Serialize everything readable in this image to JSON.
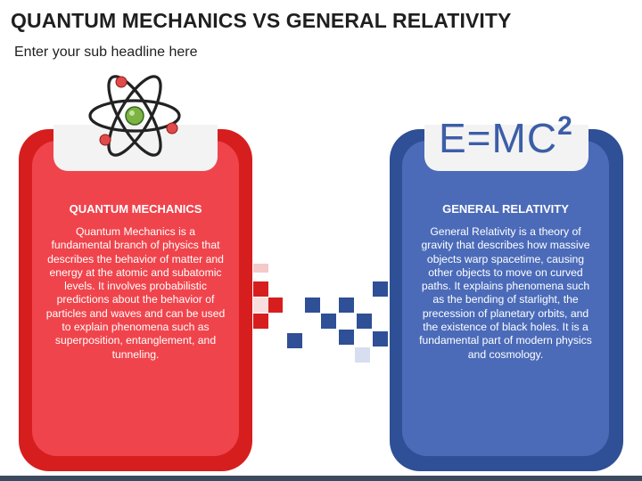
{
  "header": {
    "title": "QUANTUM MECHANICS VS GENERAL RELATIVITY",
    "subtitle": "Enter your sub headline here"
  },
  "left_panel": {
    "icon": "atom-icon",
    "heading": "QUANTUM MECHANICS",
    "body": "Quantum Mechanics is a fundamental branch of physics that describes the behavior of matter and energy at the atomic and subatomic levels. It involves probabilistic predictions about the behavior of particles and waves and can be used to explain phenomena such as superposition, entanglement, and tunneling.",
    "colors": {
      "outer": "#d71e1e",
      "inner": "#f0444c",
      "icon": "#e24a4a"
    }
  },
  "right_panel": {
    "icon": "formula-icon",
    "formula_base": "E=MC",
    "formula_exp": "2",
    "heading": "GENERAL RELATIVITY",
    "body": "General Relativity is a theory of gravity that describes how massive objects warp spacetime, causing other objects to move on curved paths. It explains phenomena such as the bending of starlight, the precession of planetary orbits, and the existence of black holes. It is a fundamental part of modern physics and cosmology.",
    "colors": {
      "outer": "#2f4f96",
      "inner": "#4b6bb9"
    }
  },
  "decoration": {
    "pixel_red": "#d71e1e",
    "pixel_blue": "#2f4f96"
  }
}
